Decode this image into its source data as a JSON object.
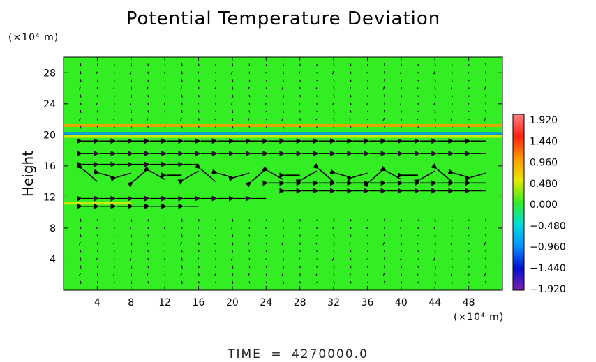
{
  "page": {
    "title": "Potential Temperature Deviation",
    "y_unit": "(×10⁴ m)",
    "x_unit": "(×10⁴ m)",
    "y_axis_label": "Height",
    "time_label": "TIME",
    "time_equals": "=",
    "time_value": "4270000.0"
  },
  "colors": {
    "background_field": "#33ee22",
    "arrows": "#000000"
  },
  "chart_data": {
    "type": "heatmap",
    "title": "Potential Temperature Deviation",
    "xlabel": "",
    "ylabel": "Height",
    "xlim": [
      0,
      52
    ],
    "ylim": [
      0,
      30
    ],
    "x_ticks": [
      4,
      8,
      12,
      16,
      20,
      24,
      28,
      32,
      36,
      40,
      44,
      48
    ],
    "y_ticks": [
      4,
      8,
      12,
      16,
      20,
      24,
      28
    ],
    "x_tick_labels": [
      "4",
      "8",
      "12",
      "16",
      "20",
      "24",
      "28",
      "32",
      "36",
      "40",
      "44",
      "48"
    ],
    "y_tick_labels": [
      "4",
      "8",
      "12",
      "16",
      "20",
      "24",
      "28"
    ],
    "colorbar": {
      "levels": [
        "1.920",
        "1.440",
        "0.960",
        "0.480",
        "0.000",
        "−0.480",
        "−0.960",
        "−1.440",
        "−1.920"
      ],
      "values": [
        1.92,
        1.44,
        0.96,
        0.48,
        0.0,
        -0.48,
        -0.96,
        -1.44,
        -1.92
      ],
      "colors": [
        "#ff8080",
        "#ff2010",
        "#ff9a00",
        "#e8e800",
        "#33ee22",
        "#00dddd",
        "#0090ff",
        "#0010d0",
        "#8020b0"
      ]
    },
    "bands": [
      {
        "y": 21.2,
        "x_from": 0,
        "x_to": 52,
        "deviation": 0.96
      },
      {
        "y": 20.2,
        "x_from": 0,
        "x_to": 52,
        "deviation": -0.96
      },
      {
        "y": 19.8,
        "x_from": 0,
        "x_to": 52,
        "deviation": 0.6
      },
      {
        "y": 11.2,
        "x_from": 0,
        "x_to": 8,
        "deviation": 0.48
      }
    ],
    "wind_rows": [
      {
        "y": 19.2,
        "x_from": 2,
        "x_to": 50,
        "direction": "west"
      },
      {
        "y": 17.6,
        "x_from": 2,
        "x_to": 50,
        "direction": "west"
      },
      {
        "y": 16.2,
        "x_from": 2,
        "x_to": 16,
        "direction": "west"
      },
      {
        "y": 14.8,
        "x_from": 2,
        "x_to": 50,
        "direction": "mixed"
      },
      {
        "y": 13.8,
        "x_from": 24,
        "x_to": 50,
        "direction": "west"
      },
      {
        "y": 12.8,
        "x_from": 26,
        "x_to": 50,
        "direction": "west"
      },
      {
        "y": 11.8,
        "x_from": 2,
        "x_to": 24,
        "direction": "west"
      },
      {
        "y": 10.8,
        "x_from": 2,
        "x_to": 16,
        "direction": "west"
      }
    ]
  }
}
